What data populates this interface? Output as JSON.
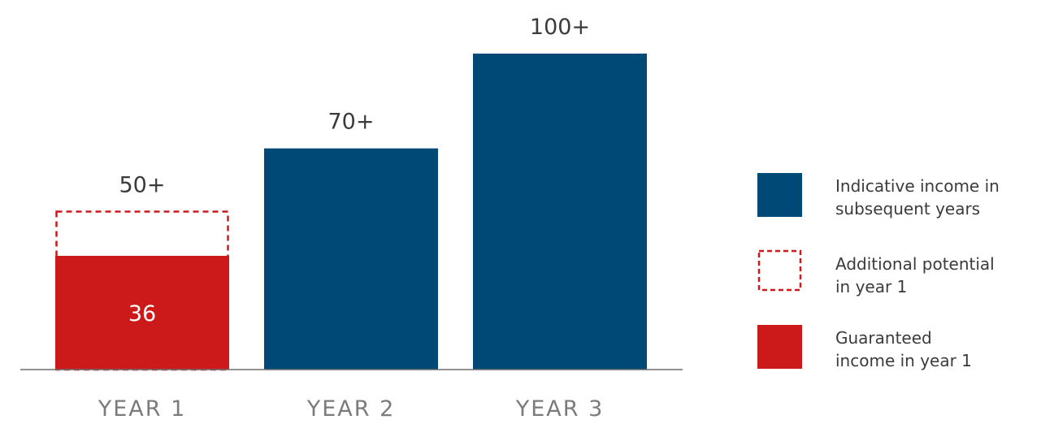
{
  "chart_data": {
    "type": "bar",
    "categories": [
      "YEAR 1",
      "YEAR 2",
      "YEAR 3"
    ],
    "series": [
      {
        "name": "Guaranteed income in year 1",
        "values": [
          36,
          null,
          null
        ],
        "style": "solid",
        "color": "#cc1a1a"
      },
      {
        "name": "Additional potential in year 1",
        "values": [
          50,
          null,
          null
        ],
        "style": "dashed-outline",
        "color": "#cc1a1a"
      },
      {
        "name": "Indicative income in subsequent years",
        "values": [
          null,
          70,
          100
        ],
        "style": "solid",
        "color": "#004876"
      }
    ],
    "bar_labels": [
      "50+",
      "70+",
      "100+"
    ],
    "inner_labels": [
      "36",
      "",
      ""
    ],
    "ylim": [
      0,
      100
    ],
    "grid": false,
    "legend_position": "right",
    "legend": [
      {
        "key": "indicative",
        "lines": [
          "Indicative income in",
          "subsequent years"
        ],
        "style": "solid",
        "color": "#004876"
      },
      {
        "key": "additional",
        "lines": [
          "Additional potential",
          "in year 1"
        ],
        "style": "dashed-outline",
        "color": "#cc1a1a"
      },
      {
        "key": "guaranteed",
        "lines": [
          "Guaranteed",
          "income in year 1"
        ],
        "style": "solid",
        "color": "#cc1a1a"
      }
    ],
    "title": "",
    "xlabel": "",
    "ylabel": ""
  }
}
